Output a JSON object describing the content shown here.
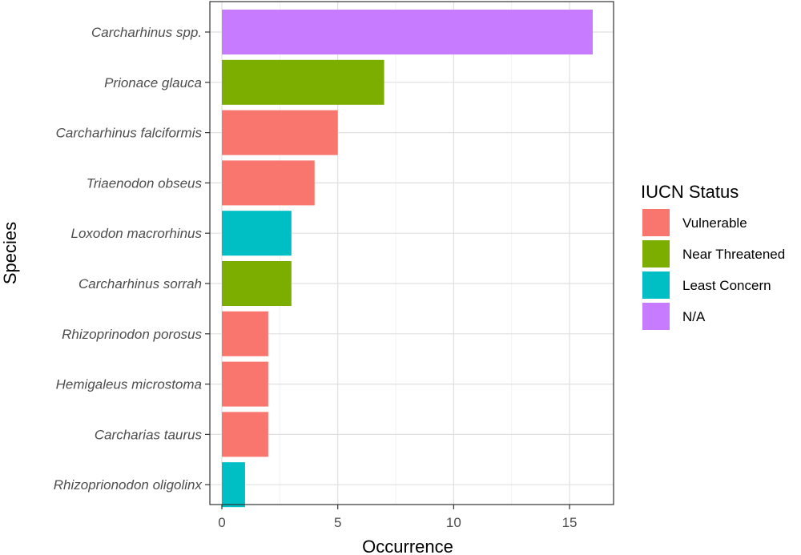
{
  "chart_data": {
    "type": "bar",
    "orientation": "horizontal",
    "xlabel": "Occurrence",
    "ylabel": "Species",
    "xlim": [
      0,
      16.8
    ],
    "xticks": [
      0,
      5,
      10,
      15
    ],
    "grid": true,
    "legend": {
      "title": "IUCN Status",
      "position": "right",
      "entries": [
        {
          "label": "Vulnerable",
          "color": "#F8766D"
        },
        {
          "label": "Near Threatened",
          "color": "#7CAE00"
        },
        {
          "label": "Least Concern",
          "color": "#00BFC4"
        },
        {
          "label": "N/A",
          "color": "#C77CFF"
        }
      ]
    },
    "categories": [
      "Carcharhinus spp.",
      "Prionace glauca",
      "Carcharhinus falciformis",
      "Triaenodon obseus",
      "Loxodon macrorhinus",
      "Carcharhinus sorrah",
      "Rhizoprinodon porosus",
      "Hemigaleus microstoma",
      "Carcharias taurus",
      "Rhizoprionodon oligolinx"
    ],
    "values": [
      16,
      7,
      5,
      4,
      3,
      3,
      2,
      2,
      2,
      1
    ],
    "status": [
      "N/A",
      "Near Threatened",
      "Vulnerable",
      "Vulnerable",
      "Least Concern",
      "Near Threatened",
      "Vulnerable",
      "Vulnerable",
      "Vulnerable",
      "Least Concern"
    ]
  }
}
